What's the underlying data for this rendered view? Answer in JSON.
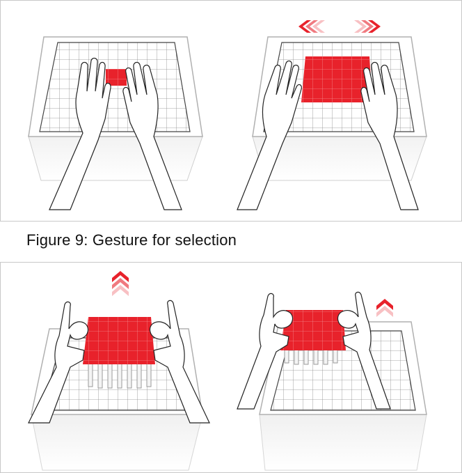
{
  "figure": {
    "caption": "Figure 9: Gesture for selection"
  },
  "panels": [
    {
      "id": "top",
      "scenes": [
        {
          "id": "selection-small",
          "arrows": "none"
        },
        {
          "id": "selection-expanded",
          "arrows": "horizontal-outward"
        }
      ]
    },
    {
      "id": "bottom",
      "scenes": [
        {
          "id": "lift-full",
          "arrows": "up"
        },
        {
          "id": "lift-partial",
          "arrows": "up"
        }
      ]
    }
  ],
  "colors": {
    "selection_red": "#e8222b",
    "arrow_red": "#e8222b",
    "grid_line": "#7a7a7a",
    "frame": "#c8c8c8"
  }
}
